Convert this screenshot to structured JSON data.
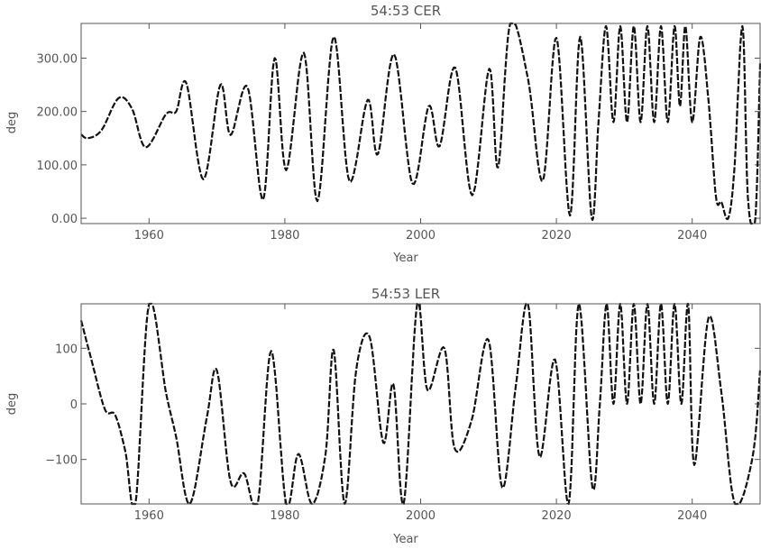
{
  "chart_data": [
    {
      "type": "line",
      "title": "54:53 CER",
      "xlabel": "Year",
      "ylabel": "deg",
      "xlim": [
        1950,
        2050
      ],
      "ylim": [
        -10,
        365
      ],
      "wrap_period": 360,
      "xticks": [
        1960,
        1980,
        2000,
        2020,
        2040
      ],
      "xtick_labels": [
        "1960",
        "1980",
        "2000",
        "2020",
        "2040"
      ],
      "yticks": [
        0,
        100,
        200,
        300
      ],
      "ytick_labels": [
        "0.00",
        "100.00",
        "200.00",
        "300.00"
      ],
      "grid": false,
      "series": [
        {
          "x": [
            1950,
            1951,
            1953,
            1955.5,
            1957.5,
            1959.5,
            1962.5,
            1964,
            1965.5,
            1968,
            1970.5,
            1972,
            1974.5,
            1976.8,
            1978.5,
            1980.2,
            1982.8,
            1984.8,
            1987.2,
            1989.5,
            1992.2,
            1993.7,
            1996.1,
            1998.8,
            2001.2,
            2002.8,
            2005.1,
            2007.6,
            2010.1,
            2011.4,
            2013.2,
            2015.8,
            2018,
            2020,
            2022,
            2023.5,
            2025.2,
            2026.2,
            2027.3,
            2028.4,
            2029.4,
            2030.4,
            2031.4,
            2032.4,
            2033.4,
            2034.4,
            2035.4,
            2036.4,
            2037.4,
            2038.2,
            2039,
            2040,
            2041.2,
            2042.4,
            2043.5,
            2044.3,
            2045.3,
            2046.2,
            2047.4,
            2048.2,
            2049.3,
            2050
          ],
          "y": [
            157,
            150,
            165,
            225,
            205,
            133,
            195,
            200,
            253,
            73,
            250,
            156,
            246,
            35,
            300,
            90,
            310,
            32,
            340,
            70,
            222,
            120,
            307,
            65,
            210,
            135,
            282,
            43,
            280,
            95,
            365,
            262,
            70,
            338,
            5,
            340,
            0,
            180,
            360,
            180,
            360,
            180,
            360,
            180,
            360,
            180,
            360,
            180,
            360,
            210,
            360,
            180,
            340,
            220,
            40,
            30,
            0,
            90,
            360,
            40,
            0,
            290
          ]
        }
      ]
    },
    {
      "type": "line",
      "title": "54:53 LER",
      "xlabel": "Year",
      "ylabel": "deg",
      "xlim": [
        1950,
        2050
      ],
      "ylim": [
        -180,
        180
      ],
      "wrap_period": 360,
      "xticks": [
        1960,
        1980,
        2000,
        2020,
        2040
      ],
      "xtick_labels": [
        "1960",
        "1980",
        "2000",
        "2020",
        "2040"
      ],
      "yticks": [
        -100,
        0,
        100
      ],
      "ytick_labels": [
        "−100",
        "0",
        "100"
      ],
      "grid": false,
      "series": [
        {
          "x": [
            1950,
            1951.5,
            1953.5,
            1955,
            1956.5,
            1958,
            1960,
            1962.5,
            1964,
            1966,
            1968.5,
            1970,
            1972,
            1974,
            1976,
            1978,
            1980.2,
            1982,
            1984,
            1986,
            1987.2,
            1988.8,
            1990.5,
            1992.5,
            1994.5,
            1996,
            1997.5,
            1999.5,
            2001,
            2003.5,
            2005,
            2007.5,
            2010,
            2012,
            2014,
            2015.8,
            2017.5,
            2019.8,
            2021.8,
            2023.3,
            2025.3,
            2026.4,
            2027.4,
            2028.4,
            2029.4,
            2030.4,
            2031.4,
            2032.4,
            2033.4,
            2034.4,
            2035.4,
            2036.4,
            2037.4,
            2038.4,
            2039.4,
            2040.3,
            2042.4,
            2044.3,
            2046.3,
            2048.9,
            2050
          ],
          "y": [
            150,
            80,
            -10,
            -20,
            -85,
            -180,
            180,
            20,
            -60,
            -180,
            -25,
            60,
            -140,
            -125,
            -180,
            95,
            -180,
            -90,
            -180,
            -90,
            97,
            -180,
            60,
            120,
            -70,
            35,
            -180,
            180,
            25,
            100,
            -80,
            -30,
            115,
            -150,
            30,
            180,
            -95,
            80,
            -180,
            180,
            -150,
            0,
            180,
            0,
            180,
            0,
            180,
            0,
            180,
            0,
            180,
            0,
            180,
            0,
            180,
            -110,
            155,
            20,
            -180,
            -95,
            60
          ]
        }
      ]
    }
  ]
}
